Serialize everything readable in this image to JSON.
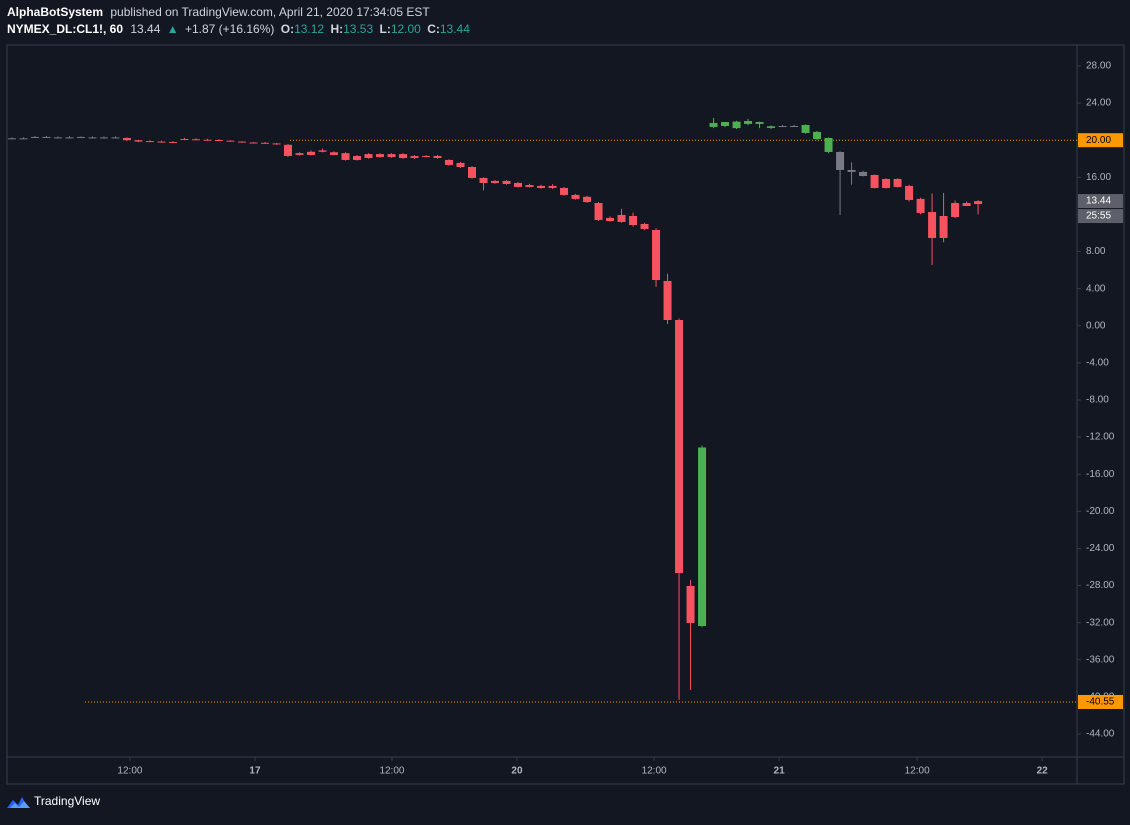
{
  "header": {
    "author": "AlphaBotSystem",
    "published": "published on TradingView.com, April 21, 2020 17:34:05 EST",
    "symbol": "NYMEX_DL:CL1!, 60",
    "last": "13.44",
    "arrow": "▲",
    "change": "+1.87 (+16.16%)",
    "o_label": "O:",
    "o": "13.12",
    "h_label": "H:",
    "h": "13.53",
    "l_label": "L:",
    "l": "12.00",
    "c_label": "C:",
    "c": "13.44"
  },
  "chart_data": {
    "type": "candlestick",
    "palette": {
      "up": "#4caf50",
      "down": "#f7525f",
      "flat": "#787b86"
    },
    "series": [
      {
        "name": "NYMEX_DL:CL1!",
        "open": [
          20.2,
          20.2,
          20.35,
          20.35,
          20.3,
          20.3,
          20.35,
          20.3,
          20.3,
          20.3,
          20.24,
          20.0,
          19.9,
          19.85,
          19.8,
          20.13,
          20.1,
          20.05,
          20.02,
          19.95,
          19.85,
          19.75,
          19.72,
          19.65,
          19.5,
          18.6,
          18.75,
          18.9,
          18.7,
          18.6,
          18.3,
          18.5,
          18.5,
          18.5,
          18.5,
          18.3,
          18.3,
          18.3,
          17.87,
          17.55,
          17.11,
          15.93,
          15.61,
          15.61,
          15.39,
          15.17,
          15.07,
          15.07,
          14.85,
          14.1,
          13.9,
          13.23,
          11.62,
          11.94,
          11.83,
          10.97,
          10.32,
          4.83,
          0.62,
          -28.05,
          -32.36,
          21.43,
          21.53,
          21.3,
          21.75,
          21.96,
          21.32,
          21.53,
          21.53,
          21.64,
          20.89,
          20.24,
          18.73,
          16.79,
          16.58,
          16.25,
          15.82,
          15.82,
          15.07,
          13.67,
          12.26,
          11.83,
          13.23,
          13.23,
          13.12
        ],
        "high": [
          20.3,
          20.3,
          20.45,
          20.45,
          20.4,
          20.45,
          20.4,
          20.4,
          20.4,
          20.4,
          20.3,
          20.05,
          20.0,
          19.95,
          19.9,
          20.25,
          20.2,
          20.15,
          20.12,
          20.0,
          19.9,
          19.8,
          19.8,
          19.7,
          19.6,
          18.7,
          18.9,
          19.1,
          18.8,
          18.7,
          18.4,
          18.6,
          18.6,
          18.6,
          18.6,
          18.4,
          18.4,
          18.4,
          17.95,
          17.65,
          17.2,
          16.0,
          15.7,
          15.7,
          15.5,
          15.3,
          15.2,
          15.25,
          14.95,
          14.2,
          14.0,
          13.35,
          11.8,
          12.6,
          12.2,
          11.1,
          10.5,
          5.6,
          0.8,
          -27.4,
          -12.9,
          22.4,
          21.9,
          22.1,
          22.3,
          22.0,
          21.6,
          21.65,
          21.65,
          21.7,
          21.0,
          20.3,
          18.8,
          17.6,
          16.7,
          16.3,
          15.9,
          15.9,
          15.2,
          13.8,
          14.25,
          14.31,
          13.5,
          13.4,
          13.53
        ],
        "low": [
          20.1,
          20.1,
          20.25,
          20.3,
          20.2,
          20.2,
          20.25,
          20.2,
          20.2,
          20.2,
          19.9,
          19.8,
          19.8,
          19.75,
          19.7,
          20.0,
          20.0,
          19.95,
          19.9,
          19.85,
          19.75,
          19.65,
          19.6,
          19.5,
          18.2,
          18.35,
          18.35,
          18.7,
          18.35,
          17.8,
          17.8,
          18.0,
          18.1,
          18.1,
          18.0,
          18.0,
          18.15,
          18.0,
          17.25,
          17.0,
          15.85,
          14.6,
          15.3,
          15.2,
          14.9,
          14.9,
          14.75,
          14.75,
          14.0,
          13.6,
          13.25,
          11.3,
          11.2,
          11.1,
          10.7,
          10.3,
          4.2,
          0.2,
          -40.32,
          -39.26,
          -32.5,
          21.3,
          21.4,
          21.2,
          21.6,
          21.3,
          21.2,
          21.45,
          21.45,
          20.7,
          20.0,
          18.6,
          11.94,
          15.2,
          16.1,
          14.8,
          14.8,
          14.9,
          13.4,
          12.0,
          6.55,
          9.0,
          11.6,
          12.9,
          12.0
        ],
        "close": [
          20.2,
          20.2,
          20.35,
          20.35,
          20.3,
          20.3,
          20.35,
          20.3,
          20.3,
          20.3,
          20.0,
          19.85,
          19.8,
          19.8,
          19.72,
          20.1,
          20.02,
          19.98,
          19.95,
          19.88,
          19.78,
          19.7,
          19.65,
          19.55,
          18.3,
          18.41,
          18.41,
          18.75,
          18.41,
          17.87,
          17.87,
          18.08,
          18.19,
          18.19,
          18.08,
          18.08,
          18.19,
          18.08,
          17.33,
          17.11,
          15.93,
          15.39,
          15.39,
          15.28,
          14.96,
          14.96,
          14.85,
          14.85,
          14.1,
          13.67,
          13.34,
          11.4,
          11.29,
          11.19,
          10.86,
          10.43,
          4.93,
          0.62,
          -26.65,
          -32.04,
          -13.12,
          21.86,
          21.96,
          22.0,
          22.07,
          21.75,
          21.5,
          21.53,
          21.53,
          20.78,
          20.13,
          18.73,
          16.79,
          16.58,
          16.14,
          14.85,
          14.85,
          14.96,
          13.56,
          12.16,
          9.46,
          9.46,
          11.72,
          12.91,
          13.44
        ],
        "colors": [
          "flat",
          "flat",
          "flat",
          "flat",
          "flat",
          "flat",
          "flat",
          "flat",
          "flat",
          "flat",
          "down",
          "down",
          "down",
          "down",
          "down",
          "down",
          "down",
          "down",
          "down",
          "down",
          "down",
          "down",
          "down",
          "down",
          "down",
          "down",
          "down",
          "down",
          "down",
          "down",
          "down",
          "down",
          "down",
          "down",
          "down",
          "down",
          "down",
          "down",
          "down",
          "down",
          "down",
          "down",
          "down",
          "down",
          "down",
          "down",
          "down",
          "down",
          "down",
          "down",
          "down",
          "down",
          "down",
          "down",
          "down",
          "down",
          "down",
          "down",
          "down",
          "down",
          "up",
          "up",
          "up",
          "up",
          "up",
          "up",
          "up",
          "flat",
          "flat",
          "up",
          "up",
          "up",
          "flat",
          "flat",
          "flat",
          "down",
          "down",
          "down",
          "down",
          "down",
          "down",
          "down",
          "down",
          "down",
          "down"
        ]
      }
    ],
    "xlim": [
      -0.43,
      92.6
    ],
    "xticks": [
      {
        "value": 10.26,
        "label": "12:00"
      },
      {
        "value": 21.13,
        "label": "17"
      },
      {
        "value": 33.04,
        "label": "12:00"
      },
      {
        "value": 43.91,
        "label": "20"
      },
      {
        "value": 55.83,
        "label": "12:00"
      },
      {
        "value": 66.7,
        "label": "21"
      },
      {
        "value": 78.7,
        "label": "12:00"
      },
      {
        "value": 89.57,
        "label": "22"
      }
    ],
    "ylim": [
      -46.48,
      30.26
    ],
    "yticks": [
      {
        "value": 28,
        "label": "28.00"
      },
      {
        "value": 24,
        "label": "24.00"
      },
      {
        "value": 20,
        "label": "20.00"
      },
      {
        "value": 16,
        "label": "16.00"
      },
      {
        "value": 12,
        "label": "12.00"
      },
      {
        "value": 8,
        "label": "8.00"
      },
      {
        "value": 4,
        "label": "4.00"
      },
      {
        "value": 0,
        "label": "0.00"
      },
      {
        "value": -4,
        "label": "-4.00"
      },
      {
        "value": -8,
        "label": "-8.00"
      },
      {
        "value": -12,
        "label": "-12.00"
      },
      {
        "value": -16,
        "label": "-16.00"
      },
      {
        "value": -20,
        "label": "-20.00"
      },
      {
        "value": -24,
        "label": "-24.00"
      },
      {
        "value": -28,
        "label": "-28.00"
      },
      {
        "value": -32,
        "label": "-32.00"
      },
      {
        "value": -36,
        "label": "-36.00"
      },
      {
        "value": -40,
        "label": "-40.00"
      },
      {
        "value": -44,
        "label": "-44.00"
      }
    ],
    "price_lines": [
      {
        "value": 20,
        "label": "20.00",
        "color": "#ff9800"
      },
      {
        "value": -40.55,
        "label": "-40.55",
        "color": "#ff9800"
      }
    ],
    "last_price": {
      "value": 13.44,
      "label": "13.44",
      "countdown": "25:55",
      "color": "#5d606b"
    }
  },
  "footer": {
    "brand": "TradingView"
  }
}
